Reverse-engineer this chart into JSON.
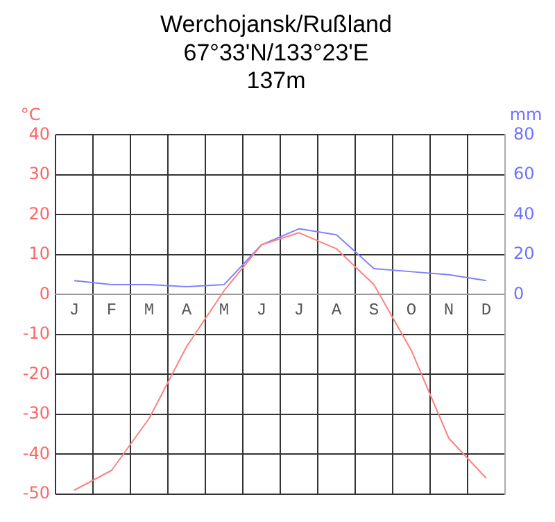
{
  "chart_data": {
    "type": "line",
    "title": "Werchojansk/Rußland",
    "subtitle": "67°33'N/133°23'E\n137m",
    "ylabel": "°C",
    "y2label": "mm",
    "categories": [
      "J",
      "F",
      "M",
      "A",
      "M",
      "J",
      "J",
      "A",
      "S",
      "O",
      "N",
      "D"
    ],
    "series": [
      {
        "name": null,
        "color": "#ff8080",
        "values": [
          -49,
          -44,
          -31,
          -13,
          1,
          12.5,
          15.5,
          11.5,
          2.5,
          -14,
          -36,
          -46
        ]
      },
      {
        "name": null,
        "color": "#8080ff",
        "axis": "y2",
        "values": [
          7,
          5,
          5,
          4,
          5,
          25,
          33,
          30,
          13,
          11.5,
          10,
          7
        ]
      }
    ],
    "ylim": [
      -50,
      40
    ],
    "yticks": [
      -50,
      -40,
      -30,
      -20,
      -10,
      0,
      10,
      20,
      30,
      40
    ],
    "y2lim": [
      -100,
      80
    ],
    "y2ticks": [
      0,
      20,
      40,
      60,
      80
    ],
    "grid": true,
    "legend": false,
    "marker": "none",
    "line_style": "solid"
  }
}
